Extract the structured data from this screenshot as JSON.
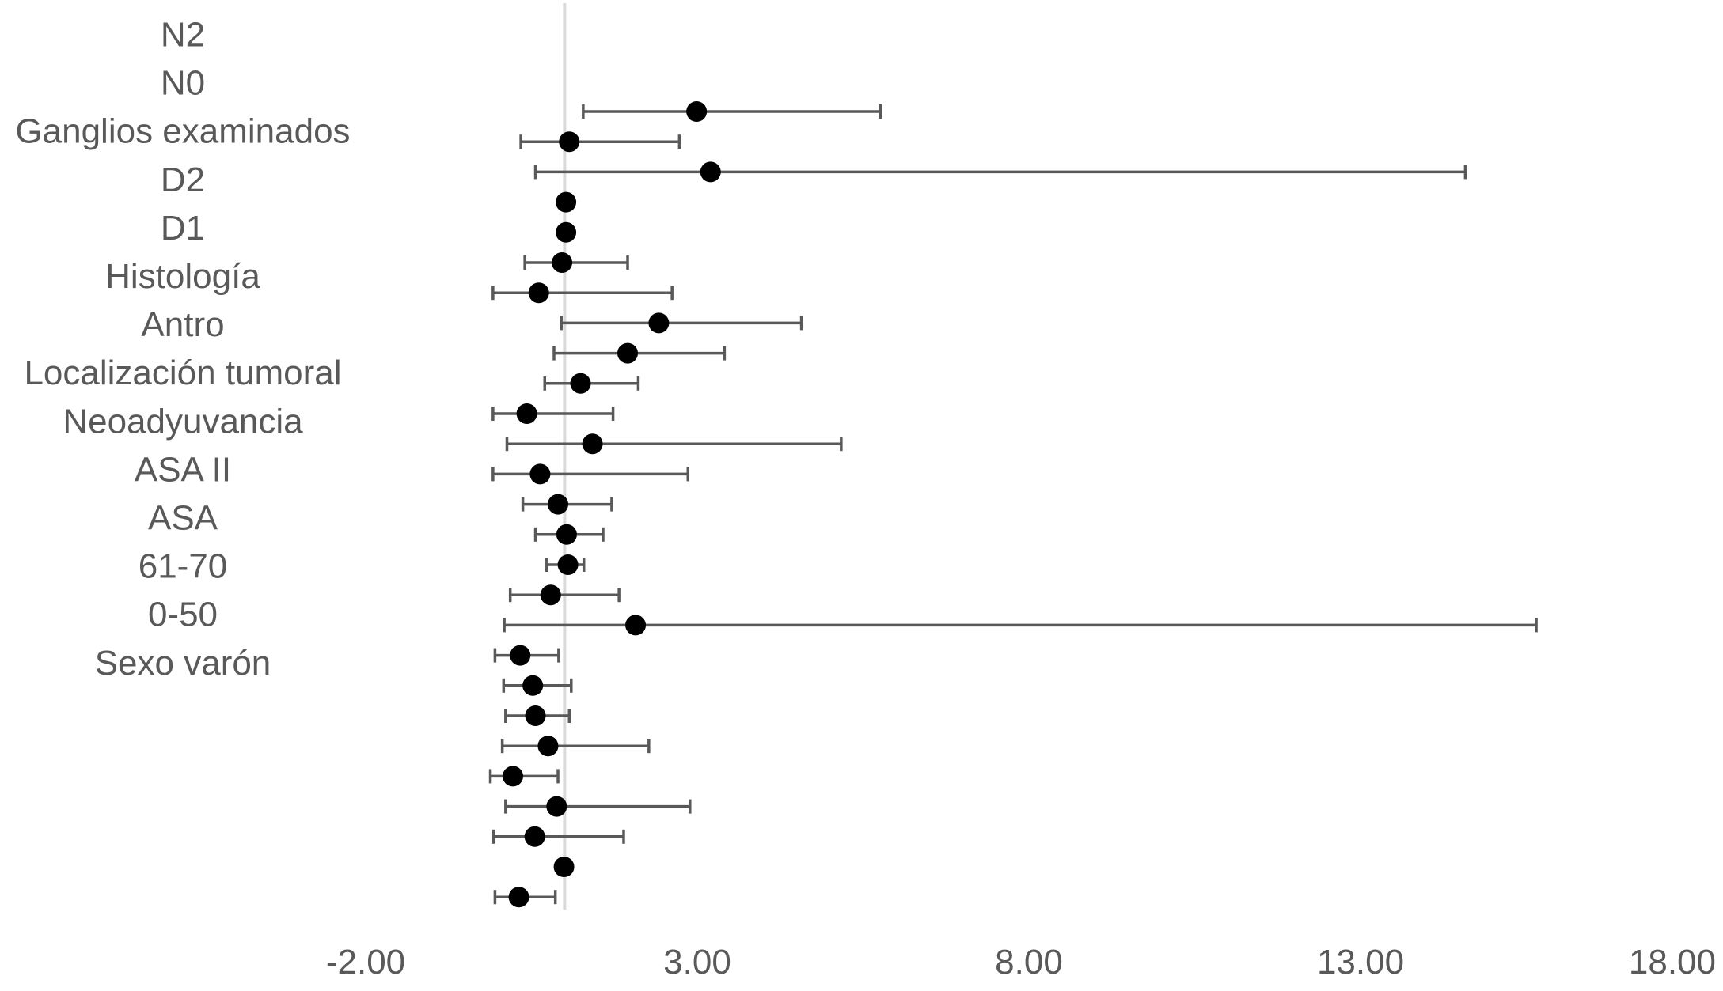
{
  "chart_data": {
    "type": "scatter",
    "title": "",
    "xlabel": "",
    "ylabel": "",
    "xlim": [
      -2,
      18
    ],
    "x_ticks": [
      "-2.00",
      "3.00",
      "8.00",
      "13.00",
      "18.00"
    ],
    "x_tick_values": [
      -2,
      3,
      8,
      13,
      18
    ],
    "reference_line_x": 1,
    "grid": false,
    "legend": "none",
    "category_labels": [
      "N2",
      "N0",
      "Ganglios examinados",
      "D2",
      "D1",
      "Histología",
      "Antro",
      "Localización tumoral",
      "Neoadyuvancia",
      "ASA II",
      "ASA",
      "61-70",
      "0-50",
      "Sexo varón"
    ],
    "series": [
      {
        "points": [
          {
            "x": 2.99,
            "lower": 1.28,
            "upper": 5.76
          },
          {
            "x": 1.07,
            "lower": 0.34,
            "upper": 2.73
          },
          {
            "x": 3.2,
            "lower": 0.56,
            "upper": 14.58
          },
          {
            "x": 1.02,
            "lower": 1.02,
            "upper": 1.02
          },
          {
            "x": 1.02,
            "lower": 1.02,
            "upper": 1.02
          },
          {
            "x": 0.96,
            "lower": 0.4,
            "upper": 1.95
          },
          {
            "x": 0.61,
            "lower": -0.08,
            "upper": 2.62
          },
          {
            "x": 2.42,
            "lower": 0.95,
            "upper": 4.57
          },
          {
            "x": 1.95,
            "lower": 0.84,
            "upper": 3.41
          },
          {
            "x": 1.24,
            "lower": 0.7,
            "upper": 2.11
          },
          {
            "x": 0.43,
            "lower": -0.08,
            "upper": 1.73
          },
          {
            "x": 1.42,
            "lower": 0.13,
            "upper": 5.17
          },
          {
            "x": 0.63,
            "lower": -0.08,
            "upper": 2.86
          },
          {
            "x": 0.9,
            "lower": 0.37,
            "upper": 1.71
          },
          {
            "x": 1.03,
            "lower": 0.56,
            "upper": 1.58
          },
          {
            "x": 1.05,
            "lower": 0.73,
            "upper": 1.29
          },
          {
            "x": 0.79,
            "lower": 0.18,
            "upper": 1.82
          },
          {
            "x": 2.07,
            "lower": 0.09,
            "upper": 15.65
          },
          {
            "x": 0.33,
            "lower": -0.05,
            "upper": 0.91
          },
          {
            "x": 0.52,
            "lower": 0.08,
            "upper": 1.1
          },
          {
            "x": 0.56,
            "lower": 0.11,
            "upper": 1.07
          },
          {
            "x": 0.75,
            "lower": 0.06,
            "upper": 2.27
          },
          {
            "x": 0.22,
            "lower": -0.12,
            "upper": 0.9
          },
          {
            "x": 0.88,
            "lower": 0.11,
            "upper": 2.89
          },
          {
            "x": 0.55,
            "lower": -0.07,
            "upper": 1.89
          },
          {
            "x": 0.99,
            "lower": 0.99,
            "upper": 0.99
          },
          {
            "x": 0.31,
            "lower": -0.05,
            "upper": 0.86
          }
        ]
      }
    ]
  }
}
